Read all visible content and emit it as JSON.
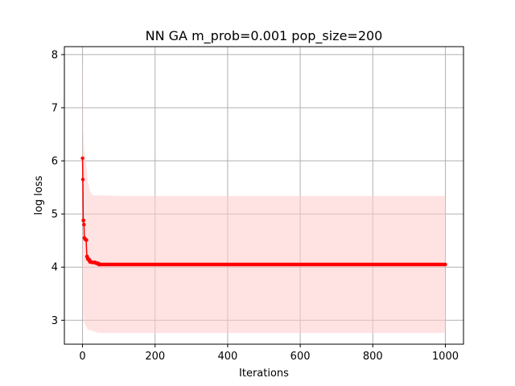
{
  "chart_data": {
    "type": "line",
    "title": "NN GA m_prob=0.001 pop_size=200",
    "xlabel": "Iterations",
    "ylabel": "log loss",
    "xlim": [
      -50,
      1050
    ],
    "ylim": [
      2.55,
      8.15
    ],
    "xticks": [
      0,
      200,
      400,
      600,
      800,
      1000
    ],
    "yticks": [
      3,
      4,
      5,
      6,
      7,
      8
    ],
    "grid": true,
    "series": [
      {
        "color": "#ff0000",
        "marker": "circle",
        "x": [
          0,
          1,
          2,
          3,
          4,
          5,
          6,
          7,
          8,
          9,
          10,
          12,
          14,
          16,
          18,
          20,
          25,
          30,
          35,
          40,
          45,
          50,
          100,
          200,
          300,
          400,
          500,
          600,
          700,
          800,
          900,
          1000
        ],
        "y": [
          6.05,
          5.65,
          4.88,
          4.88,
          4.8,
          4.55,
          4.54,
          4.53,
          4.52,
          4.52,
          4.51,
          4.2,
          4.16,
          4.14,
          4.14,
          4.1,
          4.09,
          4.09,
          4.08,
          4.07,
          4.05,
          4.05,
          4.05,
          4.05,
          4.05,
          4.05,
          4.05,
          4.05,
          4.05,
          4.05,
          4.05,
          4.05
        ]
      }
    ],
    "band": {
      "color": "#ffcccc",
      "x": [
        0,
        1,
        2,
        5,
        10,
        15,
        20,
        25,
        30,
        40,
        50,
        100,
        1000
      ],
      "upper": [
        8.0,
        7.6,
        6.6,
        6.2,
        5.95,
        5.6,
        5.45,
        5.38,
        5.35,
        5.35,
        5.35,
        5.34,
        5.34
      ],
      "lower": [
        3.0,
        3.4,
        3.1,
        2.95,
        2.88,
        2.82,
        2.82,
        2.8,
        2.79,
        2.77,
        2.76,
        2.76,
        2.76
      ]
    }
  }
}
